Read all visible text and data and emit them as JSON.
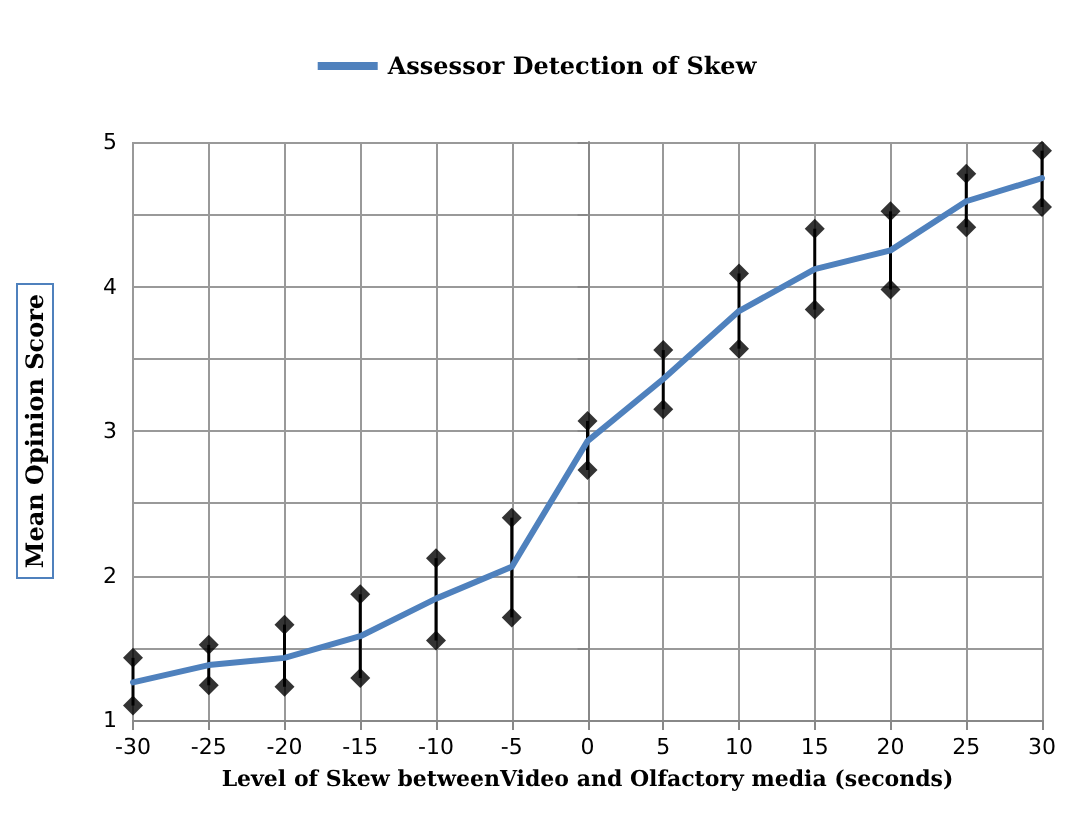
{
  "chart_data": {
    "type": "line",
    "xlabel": "Level of Skew betweenVideo and Olfactory media (seconds)",
    "ylabel": "Mean Opinion Score",
    "x": [
      -30,
      -25,
      -20,
      -15,
      -10,
      -5,
      0,
      5,
      10,
      15,
      20,
      25,
      30
    ],
    "series": [
      {
        "name": "Assessor Detection of Skew",
        "color": "#4f81bd",
        "values": [
          1.26,
          1.38,
          1.43,
          1.58,
          1.84,
          2.06,
          2.93,
          3.36,
          3.83,
          4.12,
          4.25,
          4.59,
          4.75
        ],
        "errors": [
          [
            1.1,
            1.43
          ],
          [
            1.24,
            1.52
          ],
          [
            1.23,
            1.66
          ],
          [
            1.29,
            1.87
          ],
          [
            1.55,
            2.12
          ],
          [
            1.71,
            2.4
          ],
          [
            2.73,
            3.07
          ],
          [
            3.15,
            3.56
          ],
          [
            3.57,
            4.09
          ],
          [
            3.84,
            4.4
          ],
          [
            3.98,
            4.52
          ],
          [
            4.41,
            4.78
          ],
          [
            4.55,
            4.94
          ]
        ]
      },
      {
        "type": "scatter",
        "color": "#000000",
        "marker": "diamond",
        "x": [
          -30,
          -25,
          -20,
          -15,
          -10,
          -5,
          0,
          5,
          10,
          15,
          20,
          25,
          30,
          -30,
          -25,
          -20,
          -15,
          -10,
          -5,
          0,
          5,
          10,
          15,
          20,
          25,
          30
        ],
        "values": [
          1.1,
          1.24,
          1.23,
          1.29,
          1.55,
          1.71,
          2.73,
          3.15,
          3.57,
          3.84,
          3.98,
          4.41,
          4.55,
          1.43,
          1.52,
          1.66,
          1.87,
          2.12,
          2.4,
          3.07,
          3.56,
          4.09,
          4.4,
          4.52,
          4.78,
          4.94
        ]
      }
    ],
    "xlim": [
      -30,
      30
    ],
    "xticks": [
      -30,
      -25,
      -20,
      -15,
      -10,
      -5,
      0,
      5,
      10,
      15,
      20,
      25,
      30
    ],
    "ylim": [
      1,
      5
    ],
    "yticks": [
      1,
      {
        "value": 1.5,
        "label": null
      },
      2,
      {
        "value": 2.5,
        "label": null
      },
      3,
      {
        "value": 3.5,
        "label": null
      },
      4,
      {
        "value": 4.5,
        "label": null
      },
      5
    ],
    "grid": true,
    "legend": "top",
    "marker": "none",
    "line_style": "solid"
  }
}
